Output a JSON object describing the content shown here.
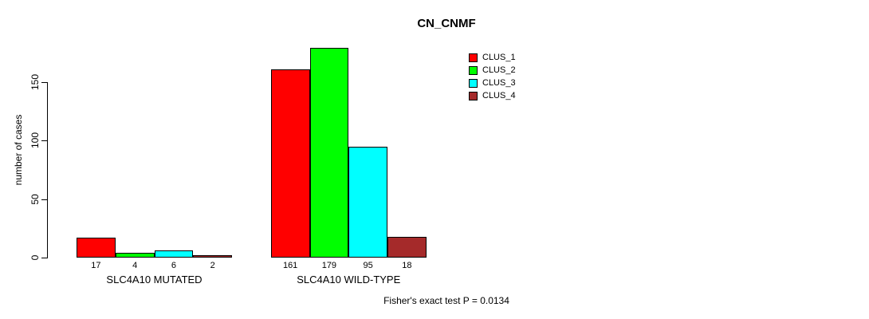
{
  "chart_data": {
    "type": "bar",
    "title": "CN_CNMF",
    "ylabel": "number of cases",
    "xlabel": "",
    "categories": [
      "SLC4A10 MUTATED",
      "SLC4A10 WILD-TYPE"
    ],
    "series": [
      {
        "name": "CLUS_1",
        "color": "#FF0000",
        "values": [
          17,
          161
        ]
      },
      {
        "name": "CLUS_2",
        "color": "#00FF00",
        "values": [
          4,
          179
        ]
      },
      {
        "name": "CLUS_3",
        "color": "#00FFFF",
        "values": [
          6,
          95
        ]
      },
      {
        "name": "CLUS_4",
        "color": "#A52A2A",
        "values": [
          2,
          18
        ]
      }
    ],
    "yticks": [
      0,
      50,
      100,
      150
    ],
    "ylim": [
      0,
      185
    ],
    "bar_value_labels": [
      [
        17,
        4,
        6,
        2
      ],
      [
        161,
        179,
        95,
        18
      ]
    ],
    "grid": false,
    "legend_position": "top-right",
    "annotation": "Fisher's exact test P = 0.0134",
    "text_color": "#000000",
    "background_color": "#FFFFFF"
  }
}
